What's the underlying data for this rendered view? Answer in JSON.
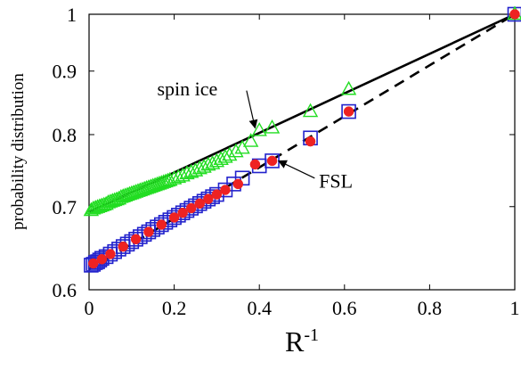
{
  "chart_data": {
    "type": "scatter",
    "xlabel": "R",
    "xlabel_superscript": "-1",
    "ylabel": "probability distribution",
    "xlim": [
      0,
      1
    ],
    "ylim": [
      0.6,
      1
    ],
    "y_scale": "log",
    "x_ticks": [
      {
        "value": 0,
        "label": "0"
      },
      {
        "value": 0.2,
        "label": "0.2"
      },
      {
        "value": 0.4,
        "label": "0.4"
      },
      {
        "value": 0.6,
        "label": "0.6"
      },
      {
        "value": 0.8,
        "label": "0.8"
      },
      {
        "value": 1,
        "label": "1"
      }
    ],
    "y_ticks": [
      {
        "value": 0.6,
        "label": "0.6"
      },
      {
        "value": 0.7,
        "label": "0.7"
      },
      {
        "value": 0.8,
        "label": "0.8"
      },
      {
        "value": 0.9,
        "label": "0.9"
      },
      {
        "value": 1,
        "label": "1"
      }
    ],
    "grid": false,
    "series": [
      {
        "marker": "triangle",
        "color": "#22dd22",
        "x": [
          0.005,
          0.01,
          0.015,
          0.02,
          0.025,
          0.03,
          0.035,
          0.04,
          0.045,
          0.05,
          0.055,
          0.06,
          0.065,
          0.07,
          0.075,
          0.08,
          0.085,
          0.09,
          0.095,
          0.1,
          0.105,
          0.11,
          0.115,
          0.12,
          0.125,
          0.13,
          0.135,
          0.14,
          0.145,
          0.15,
          0.155,
          0.16,
          0.165,
          0.17,
          0.175,
          0.18,
          0.185,
          0.19,
          0.2,
          0.21,
          0.22,
          0.23,
          0.24,
          0.25,
          0.26,
          0.27,
          0.28,
          0.29,
          0.3,
          0.31,
          0.32,
          0.33,
          0.345,
          0.36,
          0.38,
          0.4,
          0.43,
          0.52,
          0.61,
          1.0
        ],
        "y": [
          0.695,
          0.697,
          0.698,
          0.699,
          0.7,
          0.701,
          0.702,
          0.703,
          0.705,
          0.706,
          0.707,
          0.708,
          0.709,
          0.71,
          0.712,
          0.713,
          0.714,
          0.715,
          0.716,
          0.717,
          0.718,
          0.719,
          0.72,
          0.721,
          0.722,
          0.723,
          0.724,
          0.725,
          0.726,
          0.727,
          0.728,
          0.729,
          0.73,
          0.731,
          0.732,
          0.733,
          0.734,
          0.735,
          0.737,
          0.739,
          0.741,
          0.744,
          0.746,
          0.748,
          0.751,
          0.753,
          0.756,
          0.758,
          0.761,
          0.764,
          0.767,
          0.77,
          0.775,
          0.78,
          0.79,
          0.806,
          0.81,
          0.835,
          0.87,
          1.0
        ]
      },
      {
        "marker": "square",
        "color": "#2222cc",
        "x": [
          0.005,
          0.01,
          0.015,
          0.02,
          0.025,
          0.03,
          0.04,
          0.05,
          0.06,
          0.07,
          0.08,
          0.09,
          0.1,
          0.11,
          0.12,
          0.13,
          0.14,
          0.15,
          0.16,
          0.17,
          0.18,
          0.19,
          0.2,
          0.21,
          0.22,
          0.23,
          0.24,
          0.25,
          0.26,
          0.27,
          0.28,
          0.29,
          0.3,
          0.32,
          0.34,
          0.36,
          0.4,
          0.43,
          0.52,
          0.61,
          1.0
        ],
        "y": [
          0.628,
          0.629,
          0.631,
          0.632,
          0.634,
          0.636,
          0.638,
          0.641,
          0.644,
          0.647,
          0.65,
          0.653,
          0.656,
          0.659,
          0.662,
          0.665,
          0.668,
          0.671,
          0.674,
          0.677,
          0.68,
          0.683,
          0.686,
          0.689,
          0.692,
          0.695,
          0.698,
          0.701,
          0.704,
          0.707,
          0.71,
          0.713,
          0.716,
          0.722,
          0.73,
          0.738,
          0.755,
          0.762,
          0.795,
          0.835,
          1.0
        ]
      },
      {
        "marker": "circle",
        "color": "#ee2222",
        "x": [
          0.01,
          0.03,
          0.05,
          0.08,
          0.11,
          0.14,
          0.17,
          0.2,
          0.22,
          0.24,
          0.26,
          0.28,
          0.3,
          0.32,
          0.35,
          0.39,
          0.43,
          0.52,
          0.61,
          1.0
        ],
        "y": [
          0.63,
          0.635,
          0.641,
          0.65,
          0.659,
          0.668,
          0.677,
          0.686,
          0.692,
          0.698,
          0.704,
          0.71,
          0.716,
          0.722,
          0.73,
          0.757,
          0.762,
          0.79,
          0.835,
          1.0
        ]
      }
    ],
    "fit_lines": [
      {
        "style": "solid",
        "color": "#000000",
        "x": [
          0,
          1
        ],
        "y": [
          0.693,
          1.0
        ]
      },
      {
        "style": "dashed",
        "color": "#000000",
        "x": [
          0,
          1
        ],
        "y": [
          0.623,
          1.0
        ]
      }
    ],
    "annotations": [
      {
        "text": "spin ice",
        "text_x": 0.16,
        "text_y": 0.86,
        "arrow_from": [
          0.37,
          0.868
        ],
        "arrow_to": [
          0.39,
          0.81
        ]
      },
      {
        "text": "FSL",
        "text_x": 0.54,
        "text_y": 0.725,
        "arrow_from": [
          0.53,
          0.738
        ],
        "arrow_to": [
          0.445,
          0.762
        ]
      }
    ]
  }
}
